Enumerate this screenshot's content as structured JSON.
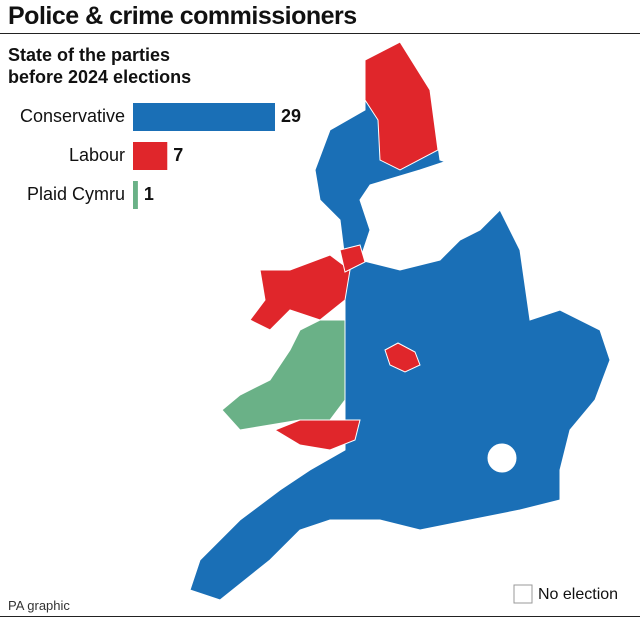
{
  "chart_data": {
    "type": "bar",
    "title": "Police & crime commissioners",
    "subtitle": "State of the parties before 2024 elections",
    "categories": [
      "Conservative",
      "Labour",
      "Plaid Cymru"
    ],
    "values": [
      29,
      7,
      1
    ],
    "colors": [
      "#1a6fb6",
      "#e0262b",
      "#6ab187"
    ],
    "legend": "No election",
    "source": "PA graphic"
  }
}
